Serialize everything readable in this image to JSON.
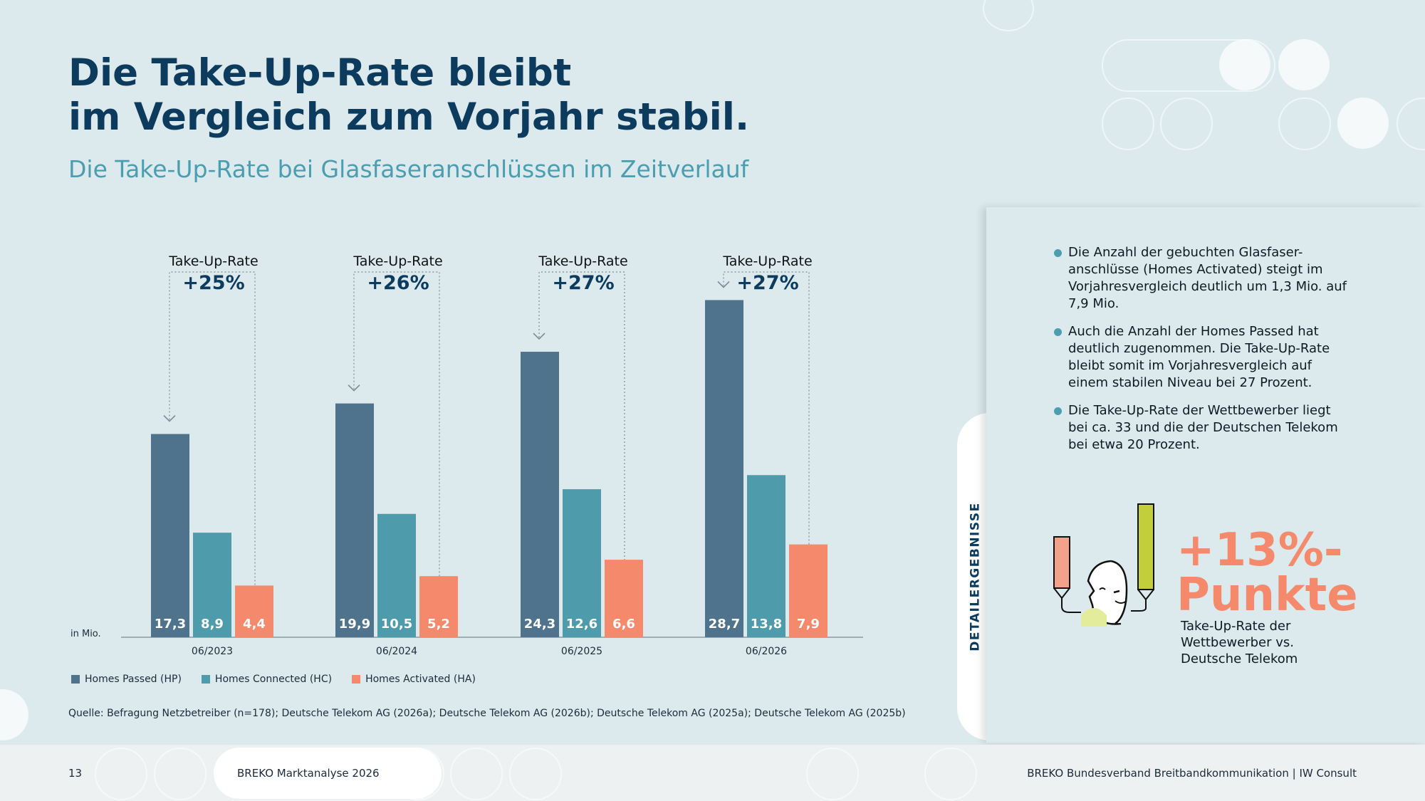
{
  "title_line1": "Die Take-Up-Rate bleibt",
  "title_line2": "im Vergleich zum Vorjahr stabil.",
  "subtitle": "Die Take-Up-Rate bei Glasfaseranschlüssen im Zeitverlauf",
  "colors": {
    "hp": "#4f738d",
    "hc": "#4e9bac",
    "ha": "#f4896b",
    "title": "#0c3b5e",
    "accent": "#4a9eb0"
  },
  "chart_data": {
    "type": "bar",
    "unit_label": "in Mio.",
    "categories": [
      "06/2023",
      "06/2024",
      "06/2025",
      "06/2026"
    ],
    "series": [
      {
        "name": "Homes Passed (HP)",
        "values": [
          17.3,
          19.9,
          24.3,
          28.7
        ],
        "labels": [
          "17,3",
          "19,9",
          "24,3",
          "28,7"
        ]
      },
      {
        "name": "Homes Connected (HC)",
        "values": [
          8.9,
          10.5,
          12.6,
          13.8
        ],
        "labels": [
          "8,9",
          "10,5",
          "12,6",
          "13,8"
        ]
      },
      {
        "name": "Homes Activated (HA)",
        "values": [
          4.4,
          5.2,
          6.6,
          7.9
        ],
        "labels": [
          "4,4",
          "5,2",
          "6,6",
          "7,9"
        ]
      }
    ],
    "annotations": [
      {
        "label": "Take-Up-Rate",
        "value": "+25%"
      },
      {
        "label": "Take-Up-Rate",
        "value": "+26%"
      },
      {
        "label": "Take-Up-Rate",
        "value": "+27%"
      },
      {
        "label": "Take-Up-Rate",
        "value": "+27%"
      }
    ],
    "ylim": [
      0,
      30
    ]
  },
  "source": "Quelle: Befragung Netzbetreiber (n=178); Deutsche Telekom AG (2026a); Deutsche Telekom AG (2026b); Deutsche Telekom AG (2025a); Deutsche Telekom AG (2025b)",
  "panel": {
    "tab_label": "DETAILERGEBNISSE",
    "bullets": [
      "Die Anzahl der gebuchten Glasfaser-anschlüsse (Homes Activated) steigt im Vorjahresvergleich deutlich um 1,3 Mio. auf 7,9 Mio.",
      "Auch die Anzahl der Homes Passed hat deutlich zugenommen. Die Take-Up-Rate bleibt somit im Vorjahresvergleich auf einem stabilen Niveau bei 27 Prozent.",
      "Die Take-Up-Rate der Wettbewerber liegt bei ca. 33 und die der Deutschen Telekom bei etwa 20 Prozent."
    ],
    "kpi_line1": "+13%-",
    "kpi_line2": "Punkte",
    "kpi_caption": "Take-Up-Rate der Wettbewerber vs. Deutsche Telekom"
  },
  "footer": {
    "page_number": "13",
    "left": "BREKO Marktanalyse 2026",
    "right": "BREKO Bundesverband Breitbandkommunikation | IW Consult"
  }
}
